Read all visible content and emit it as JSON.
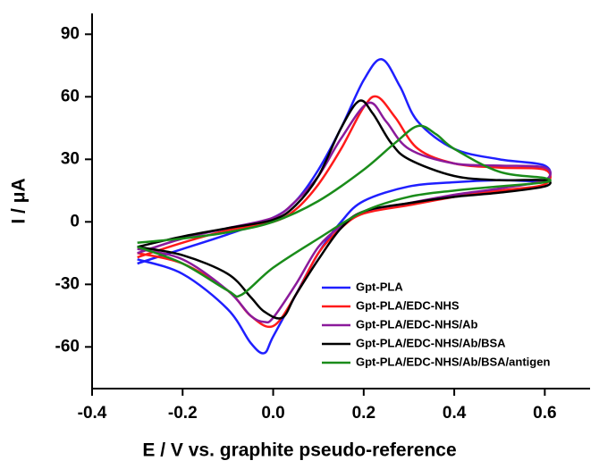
{
  "chart_data": {
    "type": "line",
    "xlabel": "E / V vs. graphite pseudo-reference",
    "ylabel": "I / μA",
    "xlim": [
      -0.4,
      0.7
    ],
    "ylim": [
      -80,
      100
    ],
    "xticks": [
      -0.4,
      -0.2,
      {
        "value": 0,
        "label": "0.0"
      },
      0.2,
      0.4,
      0.6
    ],
    "yticks": [
      -60,
      -30,
      0,
      30,
      60,
      90
    ],
    "legend": "lower-right",
    "series": [
      {
        "name": "Gpt-PLA",
        "color": "#1f1fff",
        "x": [
          -0.3,
          -0.2,
          -0.1,
          0,
          0.05,
          0.1,
          0.15,
          0.2,
          0.24,
          0.28,
          0.32,
          0.4,
          0.5,
          0.6,
          0.6,
          0.5,
          0.4,
          0.3,
          0.2,
          0.15,
          0.1,
          0.05,
          0,
          -0.02,
          -0.05,
          -0.1,
          -0.2,
          -0.3
        ],
        "values": [
          -20,
          -13,
          -6,
          2,
          10,
          25,
          45,
          68,
          78,
          65,
          48,
          35,
          30,
          27,
          20,
          20,
          19,
          17,
          10,
          0,
          -15,
          -35,
          -55,
          -63,
          -58,
          -42,
          -25,
          -18
        ]
      },
      {
        "name": "Gpt-PLA/EDC-NHS",
        "color": "#ff1a1a",
        "x": [
          -0.3,
          -0.2,
          -0.1,
          0,
          0.05,
          0.1,
          0.15,
          0.2,
          0.23,
          0.27,
          0.32,
          0.4,
          0.5,
          0.6,
          0.6,
          0.5,
          0.4,
          0.3,
          0.2,
          0.15,
          0.1,
          0.05,
          0,
          -0.05,
          -0.1,
          -0.2,
          -0.3
        ],
        "values": [
          -17,
          -10,
          -4,
          0,
          6,
          18,
          35,
          55,
          60,
          50,
          35,
          28,
          26,
          25,
          18,
          15,
          12,
          8,
          4,
          -3,
          -15,
          -35,
          -50,
          -45,
          -33,
          -20,
          -15
        ]
      },
      {
        "name": "Gpt-PLA/EDC-NHS/Ab",
        "color": "#8b1a9b",
        "x": [
          -0.3,
          -0.2,
          -0.1,
          0,
          0.05,
          0.1,
          0.15,
          0.21,
          0.25,
          0.3,
          0.4,
          0.5,
          0.6,
          0.6,
          0.5,
          0.4,
          0.3,
          0.2,
          0.15,
          0.1,
          0.05,
          0,
          -0.02,
          -0.05,
          -0.1,
          -0.2,
          -0.3
        ],
        "values": [
          -15,
          -8,
          -3,
          2,
          10,
          22,
          40,
          57,
          48,
          35,
          28,
          27,
          26,
          20,
          16,
          13,
          9,
          5,
          -2,
          -12,
          -30,
          -46,
          -48,
          -45,
          -33,
          -18,
          -13
        ]
      },
      {
        "name": "Gpt-PLA/EDC-NHS/Ab/BSA",
        "color": "#000000",
        "x": [
          -0.3,
          -0.2,
          -0.1,
          0,
          0.05,
          0.1,
          0.15,
          0.19,
          0.22,
          0.26,
          0.3,
          0.4,
          0.5,
          0.6,
          0.6,
          0.5,
          0.4,
          0.3,
          0.2,
          0.15,
          0.1,
          0.05,
          0.02,
          -0.02,
          -0.05,
          -0.1,
          -0.2,
          -0.3
        ],
        "values": [
          -12,
          -7,
          -3,
          1,
          8,
          22,
          45,
          58,
          52,
          38,
          30,
          22,
          20,
          20,
          17,
          14,
          12,
          9,
          5,
          -3,
          -18,
          -35,
          -46,
          -43,
          -36,
          -25,
          -16,
          -12
        ]
      },
      {
        "name": "Gpt-PLA/EDC-NHS/Ab/BSA/antigen",
        "color": "#1a8c1a",
        "x": [
          -0.3,
          -0.2,
          -0.1,
          0,
          0.1,
          0.2,
          0.27,
          0.32,
          0.36,
          0.4,
          0.5,
          0.6,
          0.6,
          0.5,
          0.4,
          0.3,
          0.2,
          0.1,
          0,
          -0.07,
          -0.1,
          -0.2,
          -0.3
        ],
        "values": [
          -10,
          -8,
          -5,
          0,
          10,
          25,
          38,
          46,
          42,
          35,
          24,
          21,
          19,
          17,
          15,
          12,
          5,
          -8,
          -22,
          -35,
          -33,
          -20,
          -12
        ]
      }
    ]
  }
}
